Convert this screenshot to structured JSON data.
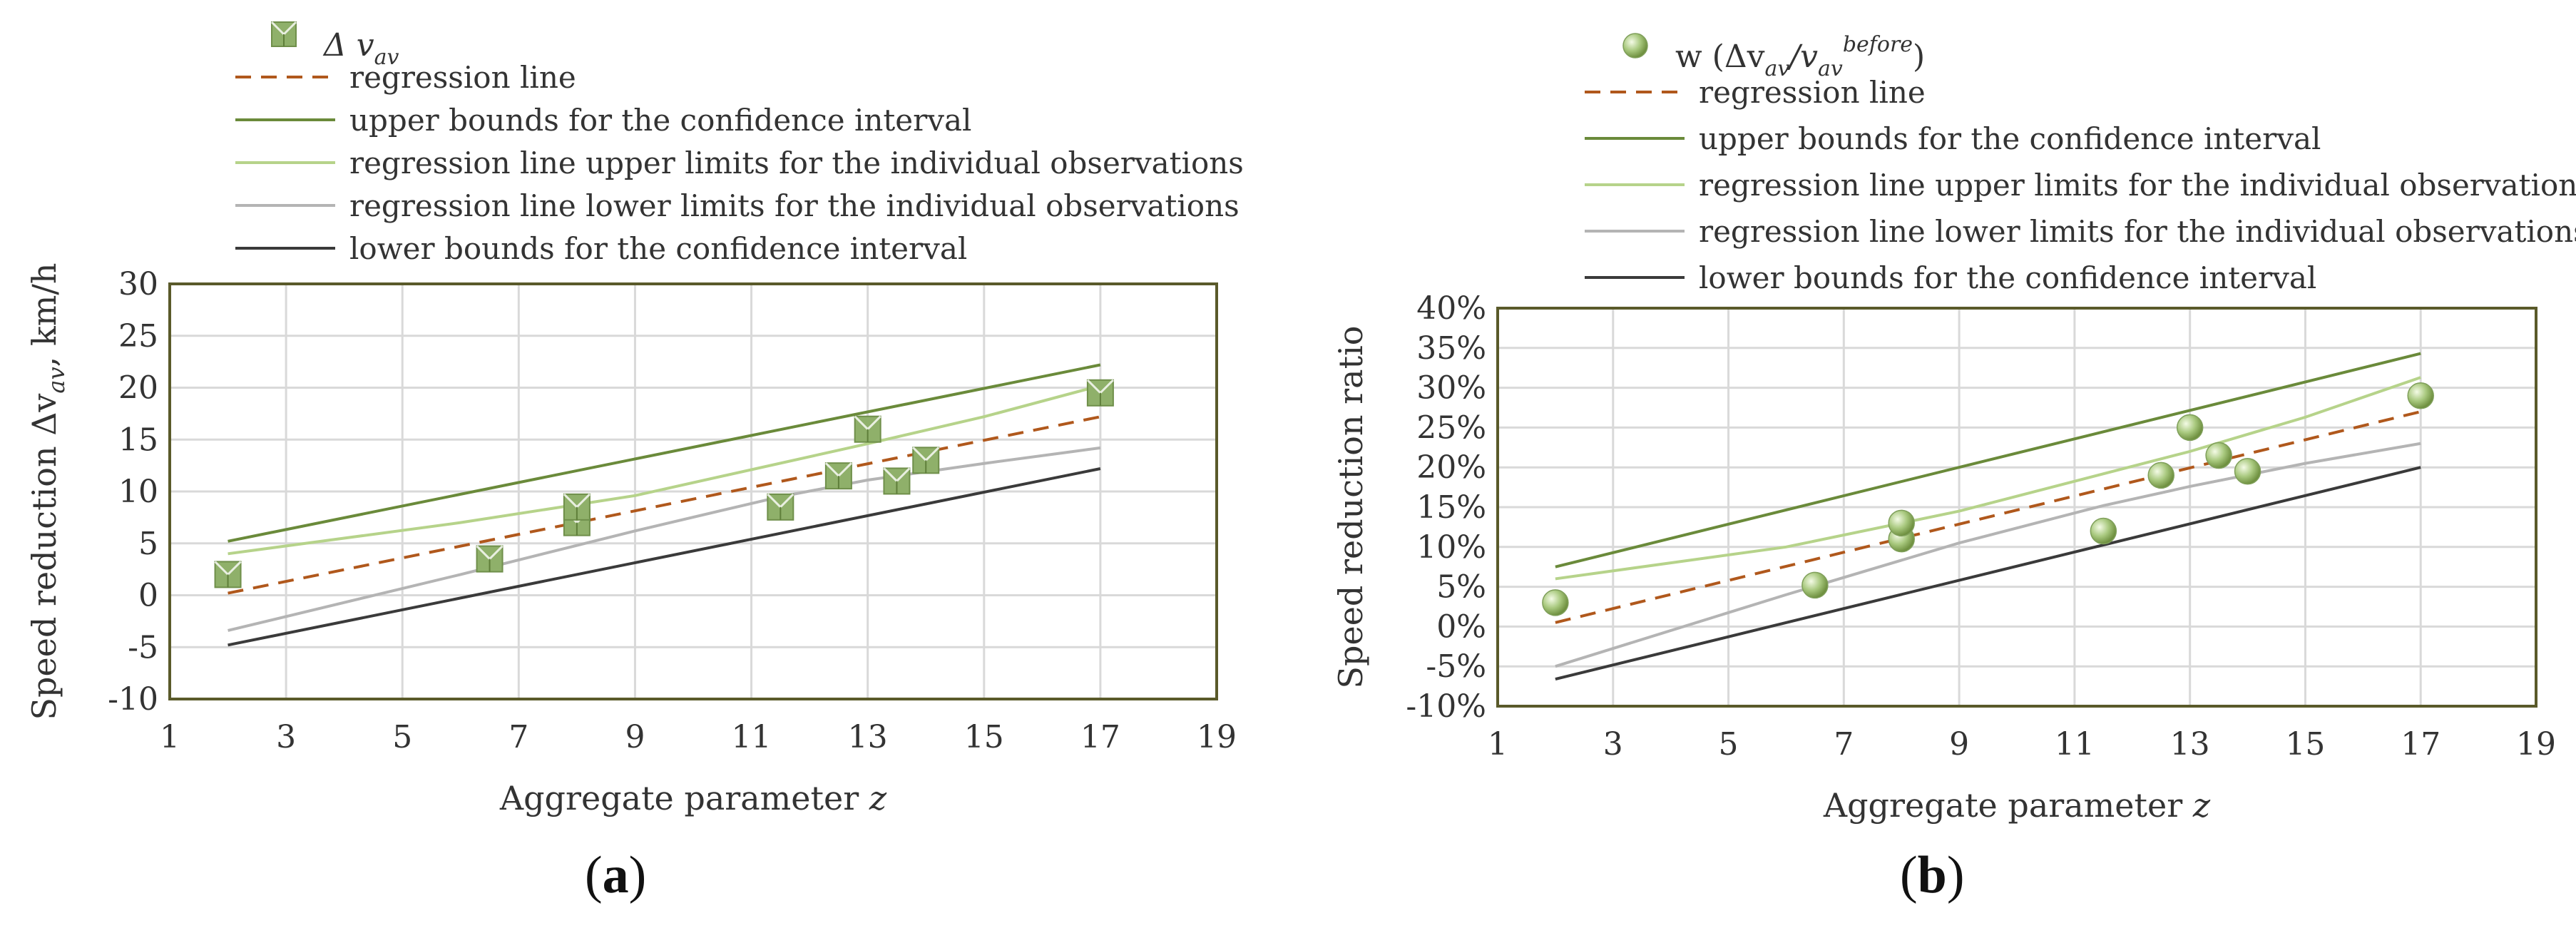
{
  "colors": {
    "regression": "#b0581c",
    "upper_ci": "#6a8a3a",
    "upper_ind": "#b6d38a",
    "lower_ind": "#b4b4b4",
    "lower_ci": "#3a3a3a",
    "frame": "#5a5a2a",
    "grid": "#d9d9d9",
    "marker_fill": "#8fb06a"
  },
  "legend_common": {
    "regression": "regression line",
    "upper_ci": "upper bounds for the confidence interval",
    "upper_ind": "regression line upper limits for the individual observations",
    "lower_ind": "regression line lower limits for the individual observations",
    "lower_ci": "lower bounds for the confidence interval"
  },
  "chart_data": [
    {
      "type": "scatter",
      "panel": "(a)",
      "panel_letter": "a",
      "xlabel": "Aggregate parameter",
      "xlabel_var": "z",
      "ylabel": "Speed reduction Δv",
      "ylabel_sub": "av",
      "ylabel_unit": ", km/h",
      "x_ticks": [
        "1",
        "3",
        "5",
        "7",
        "9",
        "11",
        "13",
        "15",
        "17",
        "19"
      ],
      "y_ticks": [
        "-10",
        "-5",
        "0",
        "5",
        "10",
        "15",
        "20",
        "25",
        "30"
      ],
      "xlim": [
        1,
        19
      ],
      "ylim": [
        -10,
        30
      ],
      "legend_marker_label": "Δ v",
      "legend_marker_sub": "av",
      "marker": "square",
      "points": [
        [
          2,
          2
        ],
        [
          6.5,
          3.5
        ],
        [
          8,
          7
        ],
        [
          8,
          8.5
        ],
        [
          11.5,
          8.5
        ],
        [
          12.5,
          11.5
        ],
        [
          13,
          16
        ],
        [
          13.5,
          11
        ],
        [
          14,
          13
        ],
        [
          17,
          19.5
        ]
      ],
      "series": [
        {
          "name": "regression line",
          "key": "regression",
          "x": [
            2,
            17
          ],
          "y": [
            0.2,
            17.2
          ]
        },
        {
          "name": "upper bounds for the confidence interval",
          "key": "upper_ci",
          "x": [
            2,
            17
          ],
          "y": [
            5.2,
            22.2
          ]
        },
        {
          "name": "regression line upper limits for the individual observations",
          "key": "upper_ind",
          "x": [
            2,
            6,
            9,
            13,
            15,
            17
          ],
          "y": [
            4,
            7,
            9.6,
            14.6,
            17.2,
            20.2
          ]
        },
        {
          "name": "regression line lower limits for the individual observations",
          "key": "lower_ind",
          "x": [
            2,
            6,
            9,
            11.5,
            13,
            15,
            17
          ],
          "y": [
            -3.4,
            2,
            6.2,
            9.5,
            11.1,
            12.7,
            14.2
          ]
        },
        {
          "name": "lower bounds for the confidence interval",
          "key": "lower_ci",
          "x": [
            2,
            17
          ],
          "y": [
            -4.8,
            12.2
          ]
        }
      ]
    },
    {
      "type": "scatter",
      "panel": "(b)",
      "panel_letter": "b",
      "xlabel": "Aggregate parameter",
      "xlabel_var": "z",
      "ylabel": "Speed reduction ratio",
      "x_ticks": [
        "1",
        "3",
        "5",
        "7",
        "9",
        "11",
        "13",
        "15",
        "17",
        "19"
      ],
      "y_ticks": [
        "-10%",
        "-5%",
        "0%",
        "5%",
        "10%",
        "15%",
        "20%",
        "25%",
        "30%",
        "35%",
        "40%"
      ],
      "xlim": [
        1,
        19
      ],
      "ylim": [
        -10,
        40
      ],
      "legend_marker_label": "w (Δv",
      "legend_marker_sub": "av",
      "legend_marker_mid": "/v",
      "legend_marker_sub2": "av",
      "legend_marker_sup": "before",
      "legend_marker_end": ")",
      "marker": "circle",
      "points": [
        [
          2,
          3
        ],
        [
          6.5,
          5.2
        ],
        [
          8,
          11
        ],
        [
          8,
          13
        ],
        [
          11.5,
          12
        ],
        [
          12.5,
          19
        ],
        [
          13,
          25
        ],
        [
          13.5,
          21.5
        ],
        [
          14,
          19.5
        ],
        [
          17,
          29
        ]
      ],
      "series": [
        {
          "name": "regression line",
          "key": "regression",
          "x": [
            2,
            17
          ],
          "y": [
            0.5,
            27
          ]
        },
        {
          "name": "upper bounds for the confidence interval",
          "key": "upper_ci",
          "x": [
            2,
            17
          ],
          "y": [
            7.5,
            34.3
          ]
        },
        {
          "name": "regression line upper limits for the individual observations",
          "key": "upper_ind",
          "x": [
            2,
            6,
            9,
            13,
            15,
            17
          ],
          "y": [
            6,
            10,
            14.5,
            22,
            26.3,
            31.3
          ]
        },
        {
          "name": "regression line lower limits for the individual observations",
          "key": "lower_ind",
          "x": [
            2,
            6,
            9,
            11.5,
            13,
            15,
            17
          ],
          "y": [
            -5,
            4,
            10.5,
            15.2,
            17.6,
            20.5,
            23
          ]
        },
        {
          "name": "lower bounds for the confidence interval",
          "key": "lower_ci",
          "x": [
            2,
            17
          ],
          "y": [
            -6.6,
            20
          ]
        }
      ]
    }
  ]
}
